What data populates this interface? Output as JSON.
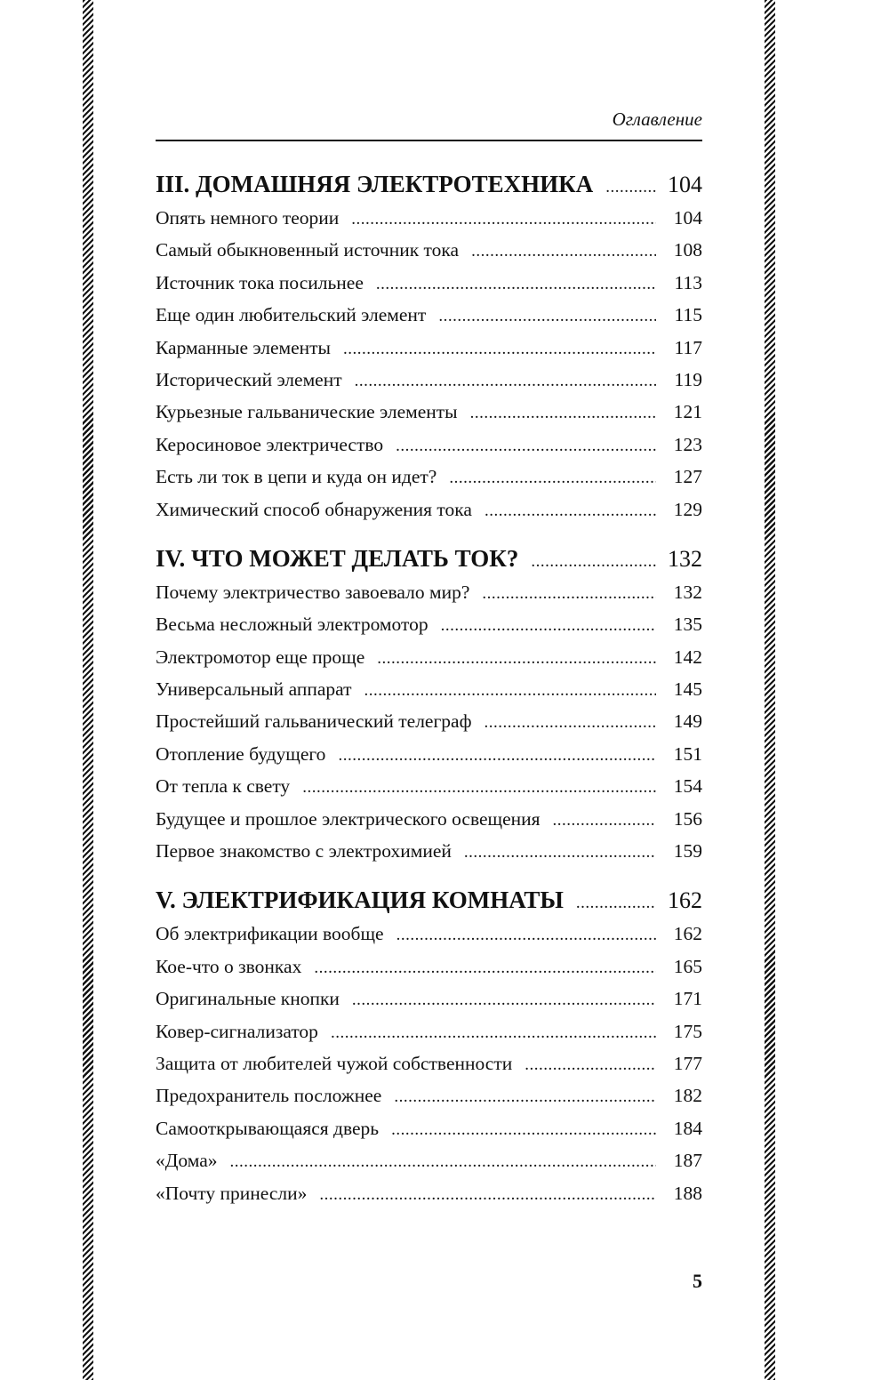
{
  "running_head": "Оглавление",
  "page_number": "5",
  "sections": [
    {
      "title": "III. ДОМАШНЯЯ ЭЛЕКТРОТЕХНИКА",
      "page": "104",
      "entries": [
        {
          "title": "Опять немного теории",
          "page": "104"
        },
        {
          "title": "Самый обыкновенный источник тока",
          "page": "108"
        },
        {
          "title": "Источник тока посильнее",
          "page": "113"
        },
        {
          "title": "Еще один любительский элемент",
          "page": "115"
        },
        {
          "title": "Карманные элементы",
          "page": "117"
        },
        {
          "title": "Исторический элемент",
          "page": "119"
        },
        {
          "title": "Курьезные гальванические элементы",
          "page": "121"
        },
        {
          "title": "Керосиновое электричество",
          "page": "123"
        },
        {
          "title": "Есть ли ток в цепи и куда он идет?",
          "page": "127"
        },
        {
          "title": "Химический способ обнаружения тока",
          "page": "129"
        }
      ]
    },
    {
      "title": "IV. ЧТО МОЖЕТ ДЕЛАТЬ ТОК?",
      "page": "132",
      "entries": [
        {
          "title": "Почему электричество завоевало мир?",
          "page": "132"
        },
        {
          "title": "Весьма несложный электромотор",
          "page": "135"
        },
        {
          "title": "Электромотор еще проще",
          "page": "142"
        },
        {
          "title": "Универсальный аппарат",
          "page": "145"
        },
        {
          "title": "Простейший гальванический телеграф",
          "page": "149"
        },
        {
          "title": "Отопление будущего",
          "page": "151"
        },
        {
          "title": "От тепла к свету",
          "page": "154"
        },
        {
          "title": "Будущее и прошлое электрического освещения",
          "page": "156"
        },
        {
          "title": "Первое знакомство с электрохимией",
          "page": "159"
        }
      ]
    },
    {
      "title": "V. ЭЛЕКТРИФИКАЦИЯ КОМНАТЫ",
      "page": "162",
      "entries": [
        {
          "title": "Об электрификации вообще",
          "page": "162"
        },
        {
          "title": "Кое-что о звонках",
          "page": "165"
        },
        {
          "title": "Оригинальные кнопки",
          "page": "171"
        },
        {
          "title": "Ковер-сигнализатор",
          "page": "175"
        },
        {
          "title": "Защита от любителей чужой собственности",
          "page": "177"
        },
        {
          "title": "Предохранитель посложнее",
          "page": "182"
        },
        {
          "title": "Самооткрывающаяся дверь",
          "page": "184"
        },
        {
          "title": "«Дома»",
          "page": "187"
        },
        {
          "title": "«Почту принесли»",
          "page": "188"
        }
      ]
    }
  ]
}
